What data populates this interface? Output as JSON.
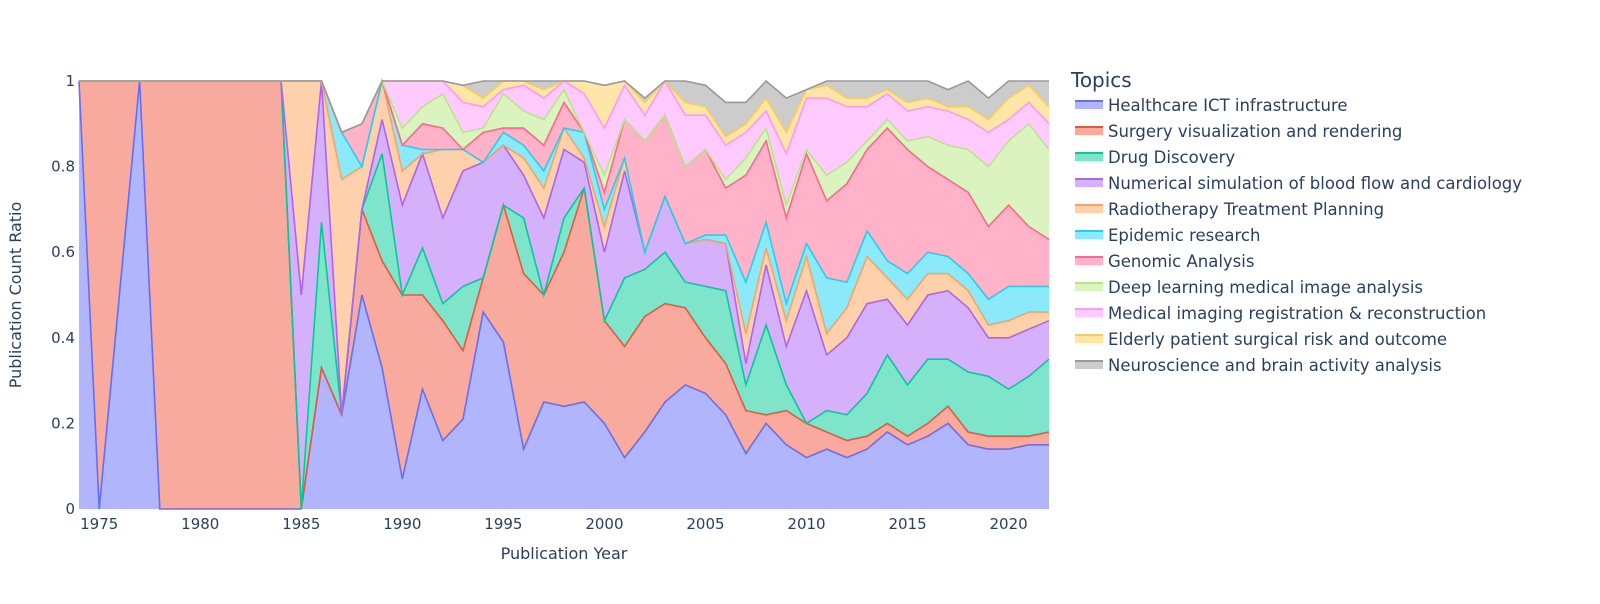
{
  "chart_data": {
    "type": "area",
    "stacking": "normalized",
    "xlabel": "Publication Year",
    "ylabel": "Publication Count Ratio",
    "xlim": [
      1974,
      2022
    ],
    "ylim": [
      0,
      1
    ],
    "x_ticks": [
      1975,
      1980,
      1985,
      1990,
      1995,
      2000,
      2005,
      2010,
      2015,
      2020
    ],
    "y_ticks": [
      0,
      0.2,
      0.4,
      0.6,
      0.8,
      1
    ],
    "y_tick_labels": [
      "0",
      "0.2",
      "0.4",
      "0.6",
      "0.8",
      "1"
    ],
    "legend_title": "Topics",
    "legend_position": "right",
    "grid": false,
    "x": [
      1974,
      1975,
      1976,
      1977,
      1978,
      1979,
      1980,
      1981,
      1982,
      1983,
      1984,
      1985,
      1986,
      1987,
      1988,
      1989,
      1990,
      1991,
      1992,
      1993,
      1994,
      1995,
      1996,
      1997,
      1998,
      1999,
      2000,
      2001,
      2002,
      2003,
      2004,
      2005,
      2006,
      2007,
      2008,
      2009,
      2010,
      2011,
      2012,
      2013,
      2014,
      2015,
      2016,
      2017,
      2018,
      2019,
      2020,
      2021,
      2022
    ],
    "series": [
      {
        "name": "Healthcare ICT infrastructure",
        "color": "#636efa",
        "values": [
          1,
          0,
          null,
          1,
          0,
          null,
          null,
          null,
          null,
          null,
          0,
          0,
          0.33,
          0.22,
          0.5,
          0.33,
          0.07,
          0.28,
          0.16,
          0.21,
          0.46,
          0.39,
          0.14,
          0.25,
          0.24,
          0.25,
          0.2,
          0.12,
          0.18,
          0.25,
          0.29,
          0.27,
          0.22,
          0.13,
          0.2,
          0.15,
          0.12,
          0.14,
          0.12,
          0.14,
          0.18,
          0.15,
          0.17,
          0.2,
          0.15,
          0.14,
          0.14,
          0.15,
          0.15
        ]
      },
      {
        "name": "Surgery visualization and rendering",
        "color": "#EF553B",
        "values": [
          0,
          1,
          null,
          0,
          1,
          null,
          null,
          null,
          0,
          null,
          1,
          0,
          0,
          0,
          0.2,
          0.25,
          0.43,
          0.22,
          0.28,
          0.16,
          0.08,
          0.32,
          0.41,
          0.25,
          0.36,
          0.5,
          0.24,
          0.26,
          0.27,
          0.23,
          0.18,
          0.13,
          0.12,
          0.1,
          0.02,
          0.08,
          0.08,
          0.04,
          0.04,
          0.03,
          0.02,
          0.02,
          0.03,
          0.04,
          0.03,
          0.03,
          0.03,
          0.02,
          0.03
        ]
      },
      {
        "name": "Drug Discovery",
        "color": "#00cc96",
        "values": [
          0,
          0,
          null,
          0,
          0,
          null,
          null,
          null,
          1,
          null,
          0,
          0,
          0.34,
          0,
          0,
          0.25,
          0,
          0.11,
          0.04,
          0.15,
          0,
          0,
          0.13,
          0,
          0.08,
          0,
          0,
          0.16,
          0.11,
          0.12,
          0.06,
          0.12,
          0.17,
          0.06,
          0.21,
          0.06,
          0,
          0.05,
          0.06,
          0.1,
          0.16,
          0.12,
          0.15,
          0.11,
          0.14,
          0.14,
          0.11,
          0.14,
          0.17
        ]
      },
      {
        "name": "Numerical simulation of blood flow and cardiology",
        "color": "#ab63fa",
        "values": [
          0,
          0,
          null,
          0,
          0,
          null,
          null,
          null,
          0,
          null,
          0,
          0.5,
          0.33,
          0,
          0,
          0.08,
          0.21,
          0.22,
          0.2,
          0.27,
          0.27,
          0.14,
          0.1,
          0.18,
          0.16,
          0.06,
          0.16,
          0.25,
          0.04,
          0.13,
          0.09,
          0.11,
          0.11,
          0.05,
          0.14,
          0.09,
          0.31,
          0.13,
          0.18,
          0.21,
          0.13,
          0.14,
          0.15,
          0.16,
          0.15,
          0.09,
          0.12,
          0.11,
          0.09
        ]
      },
      {
        "name": "Radiotherapy Treatment Planning",
        "color": "#FFA15A",
        "values": [
          0,
          0,
          null,
          0,
          0,
          null,
          null,
          null,
          0,
          null,
          0,
          0.5,
          0.34,
          0.55,
          0.1,
          0.09,
          0.08,
          0,
          0.16,
          0.05,
          0,
          0,
          0.04,
          0.07,
          0.05,
          0.01,
          0.06,
          0.03,
          0,
          0,
          0,
          0,
          0,
          0.07,
          0.04,
          0.06,
          0.08,
          0.05,
          0.07,
          0.11,
          0.05,
          0.06,
          0.05,
          0.04,
          0.04,
          0.03,
          0.04,
          0.04,
          0.02
        ]
      },
      {
        "name": "Epidemic research",
        "color": "#19d3f3",
        "values": [
          0,
          0,
          null,
          0,
          0,
          null,
          null,
          null,
          0,
          null,
          0,
          0,
          0,
          0.11,
          0,
          0,
          0.06,
          0.01,
          0,
          0,
          0,
          0.03,
          0.03,
          0.04,
          0,
          0.06,
          0.04,
          0,
          0,
          0,
          0,
          0.01,
          0.02,
          0.12,
          0.06,
          0.04,
          0.03,
          0.13,
          0.06,
          0.06,
          0.04,
          0.06,
          0.05,
          0.04,
          0.04,
          0.06,
          0.08,
          0.06,
          0.06
        ]
      },
      {
        "name": "Genomic Analysis",
        "color": "#FF6692",
        "values": [
          0,
          0,
          null,
          0,
          0,
          null,
          null,
          null,
          0,
          null,
          0,
          0,
          0,
          0,
          0.1,
          0,
          0,
          0.06,
          0.05,
          0,
          0.07,
          0.01,
          0.04,
          0.06,
          0.06,
          0,
          0.04,
          0.09,
          0.26,
          0.19,
          0.18,
          0.2,
          0.11,
          0.25,
          0.19,
          0.2,
          0.21,
          0.18,
          0.23,
          0.19,
          0.31,
          0.29,
          0.2,
          0.18,
          0.19,
          0.17,
          0.19,
          0.14,
          0.11
        ]
      },
      {
        "name": "Deep learning medical image analysis",
        "color": "#B6E880",
        "values": [
          0,
          0,
          null,
          0,
          0,
          null,
          null,
          null,
          0,
          null,
          0,
          0,
          0,
          0,
          0,
          0.08,
          0.04,
          0.04,
          0.08,
          0.04,
          0.01,
          0.08,
          0.04,
          0.06,
          0.03,
          0,
          0.04,
          0,
          0,
          0,
          0,
          0,
          0.02,
          0.04,
          0.03,
          0.03,
          0.01,
          0.06,
          0.05,
          0.02,
          0.02,
          0.02,
          0.07,
          0.08,
          0.1,
          0.14,
          0.15,
          0.24,
          0.21
        ]
      },
      {
        "name": "Medical imaging registration & reconstruction",
        "color": "#FF97FF",
        "values": [
          0,
          0,
          null,
          0,
          0,
          null,
          null,
          null,
          0,
          null,
          0,
          0,
          0,
          0,
          0,
          0,
          0.11,
          0.06,
          0.04,
          0.07,
          0.05,
          0.01,
          0.06,
          0.05,
          0.03,
          0.09,
          0.11,
          0.08,
          0.06,
          0.08,
          0.12,
          0.08,
          0.08,
          0.06,
          0.04,
          0.12,
          0.12,
          0.18,
          0.13,
          0.08,
          0.06,
          0.07,
          0.07,
          0.08,
          0.07,
          0.08,
          0.05,
          0.05,
          0.06
        ]
      },
      {
        "name": "Elderly patient surgical risk and outcome",
        "color": "#FECB52",
        "values": [
          0,
          0,
          null,
          0,
          0,
          null,
          null,
          null,
          0,
          null,
          0,
          0,
          0,
          0,
          0,
          0,
          0,
          0,
          0,
          0.04,
          0.02,
          0.02,
          0.02,
          0.02,
          0.05,
          0.03,
          0.1,
          0.01,
          0.03,
          0.03,
          0.03,
          0.02,
          0.02,
          0.02,
          0.03,
          0.05,
          0.02,
          0.03,
          0.02,
          0.02,
          0.01,
          0.02,
          0.02,
          0.01,
          0.03,
          0.03,
          0.05,
          0.04,
          0.04
        ]
      },
      {
        "name": "Neuroscience and brain activity analysis",
        "color": "#999999",
        "values": [
          0,
          0,
          null,
          0,
          0,
          null,
          null,
          null,
          0,
          null,
          0,
          0,
          0,
          0,
          0,
          0,
          0,
          0,
          0,
          0,
          0.04,
          0,
          0.03,
          0.02,
          0.04,
          0,
          0,
          0,
          0.01,
          0,
          0.06,
          0.05,
          0.08,
          0.05,
          0.06,
          0.08,
          0,
          0.01,
          0.06,
          0.06,
          0.05,
          0.06,
          0.06,
          0.04,
          0.06,
          0.05,
          0.05,
          0.04,
          0.07
        ]
      }
    ]
  }
}
